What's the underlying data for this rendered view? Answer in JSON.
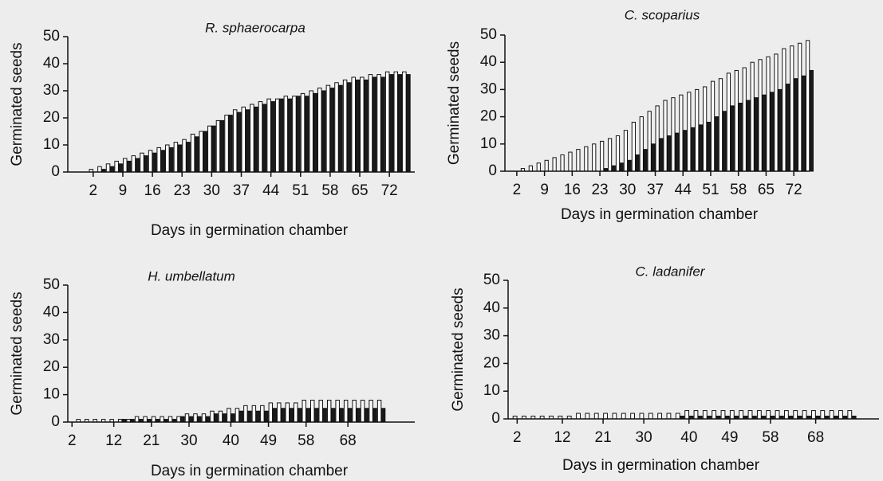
{
  "chart_data": [
    {
      "type": "bar",
      "title": "R. sphaerocarpa",
      "xlabel": "Days in germination chamber",
      "ylabel": "Germinated seeds",
      "x": [
        2,
        4,
        6,
        8,
        10,
        12,
        14,
        16,
        18,
        20,
        22,
        24,
        26,
        28,
        30,
        32,
        34,
        36,
        38,
        40,
        42,
        44,
        46,
        48,
        50,
        52,
        54,
        56,
        58,
        60,
        62,
        64,
        66,
        68,
        70,
        72,
        74,
        76
      ],
      "series": [
        {
          "color": "#ffffff",
          "values": [
            1,
            2,
            3,
            4,
            5,
            6,
            7,
            8,
            9,
            10,
            11,
            12,
            14,
            15,
            17,
            19,
            21,
            23,
            24,
            25,
            26,
            27,
            27,
            28,
            28,
            29,
            30,
            31,
            32,
            33,
            34,
            35,
            35,
            36,
            36,
            37,
            37,
            37
          ]
        },
        {
          "color": "#1a1a1a",
          "values": [
            0,
            1,
            2,
            3,
            4,
            5,
            6,
            7,
            8,
            9,
            10,
            11,
            13,
            15,
            17,
            19,
            21,
            22,
            23,
            24,
            25,
            26,
            27,
            27,
            28,
            28,
            29,
            30,
            31,
            32,
            33,
            34,
            34,
            35,
            35,
            36,
            36,
            36
          ]
        }
      ],
      "xlim": [
        -4,
        78
      ],
      "xticks": [
        2,
        9,
        16,
        23,
        30,
        37,
        44,
        51,
        58,
        65,
        72
      ],
      "ylim": [
        0,
        50
      ],
      "yticks": [
        0,
        10,
        20,
        30,
        40,
        50
      ]
    },
    {
      "type": "bar",
      "title": "C. scoparius",
      "xlabel": "Days in germination chamber",
      "ylabel": "Germinated seeds",
      "x": [
        2,
        4,
        6,
        8,
        10,
        12,
        14,
        16,
        18,
        20,
        22,
        24,
        26,
        28,
        30,
        32,
        34,
        36,
        38,
        40,
        42,
        44,
        46,
        48,
        50,
        52,
        54,
        56,
        58,
        60,
        62,
        64,
        66,
        68,
        70,
        72,
        74,
        76
      ],
      "series": [
        {
          "color": "#ffffff",
          "values": [
            0,
            1,
            2,
            3,
            4,
            5,
            6,
            7,
            8,
            9,
            10,
            11,
            12,
            13,
            15,
            18,
            20,
            22,
            24,
            26,
            27,
            28,
            29,
            30,
            31,
            33,
            34,
            36,
            37,
            38,
            40,
            41,
            42,
            43,
            45,
            46,
            47,
            48
          ]
        },
        {
          "color": "#1a1a1a",
          "values": [
            0,
            0,
            0,
            0,
            0,
            0,
            0,
            0,
            0,
            0,
            0,
            1,
            2,
            3,
            4,
            6,
            8,
            10,
            12,
            13,
            14,
            15,
            16,
            17,
            18,
            20,
            22,
            24,
            25,
            26,
            27,
            28,
            29,
            30,
            32,
            34,
            35,
            37
          ]
        }
      ],
      "xlim": [
        -1,
        76
      ],
      "xticks": [
        2,
        9,
        16,
        23,
        30,
        37,
        44,
        51,
        58,
        65,
        72
      ],
      "ylim": [
        0,
        50
      ],
      "yticks": [
        0,
        10,
        20,
        30,
        40,
        50
      ]
    },
    {
      "type": "bar",
      "title": "H. umbellatum",
      "xlabel": "Days in germination chamber",
      "ylabel": "Germinated seeds",
      "x": [
        2,
        4,
        6,
        8,
        10,
        12,
        14,
        16,
        18,
        20,
        22,
        24,
        26,
        28,
        30,
        32,
        34,
        36,
        38,
        40,
        42,
        44,
        46,
        48,
        50,
        52,
        54,
        56,
        58,
        60,
        62,
        64,
        66,
        68,
        70,
        72,
        74,
        76
      ],
      "series": [
        {
          "color": "#ffffff",
          "values": [
            0,
            1,
            1,
            1,
            1,
            1,
            1,
            1,
            2,
            2,
            2,
            2,
            2,
            2,
            3,
            3,
            3,
            4,
            4,
            5,
            5,
            6,
            6,
            6,
            7,
            7,
            7,
            7,
            8,
            8,
            8,
            8,
            8,
            8,
            8,
            8,
            8,
            8
          ]
        },
        {
          "color": "#1a1a1a",
          "values": [
            0,
            0,
            0,
            0,
            0,
            0,
            1,
            1,
            1,
            1,
            1,
            1,
            1,
            2,
            2,
            2,
            2,
            3,
            3,
            3,
            4,
            4,
            4,
            4,
            5,
            5,
            5,
            5,
            5,
            5,
            5,
            5,
            5,
            5,
            5,
            5,
            5,
            5
          ]
        }
      ],
      "xlim": [
        1,
        84
      ],
      "xticks": [
        2,
        12,
        21,
        30,
        40,
        49,
        58,
        68
      ],
      "ylim": [
        0,
        50
      ],
      "yticks": [
        0,
        10,
        20,
        30,
        40,
        50
      ]
    },
    {
      "type": "bar",
      "title": "C. ladanifer",
      "xlabel": "Days in germination chamber",
      "ylabel": "Germinated seeds",
      "x": [
        2,
        4,
        6,
        8,
        10,
        12,
        14,
        16,
        18,
        20,
        22,
        24,
        26,
        28,
        30,
        32,
        34,
        36,
        38,
        40,
        42,
        44,
        46,
        48,
        50,
        52,
        54,
        56,
        58,
        60,
        62,
        64,
        66,
        68,
        70,
        72,
        74,
        76
      ],
      "series": [
        {
          "color": "#ffffff",
          "values": [
            1,
            1,
            1,
            1,
            1,
            1,
            1,
            2,
            2,
            2,
            2,
            2,
            2,
            2,
            2,
            2,
            2,
            2,
            2,
            3,
            3,
            3,
            3,
            3,
            3,
            3,
            3,
            3,
            3,
            3,
            3,
            3,
            3,
            3,
            3,
            3,
            3,
            3
          ]
        },
        {
          "color": "#1a1a1a",
          "values": [
            0,
            0,
            0,
            0,
            0,
            0,
            0,
            0,
            0,
            0,
            0,
            0,
            0,
            0,
            0,
            0,
            0,
            0,
            1,
            1,
            1,
            1,
            1,
            1,
            1,
            1,
            1,
            1,
            1,
            1,
            1,
            1,
            1,
            1,
            1,
            1,
            1,
            1
          ]
        }
      ],
      "xlim": [
        0,
        82
      ],
      "xticks": [
        2,
        12,
        21,
        30,
        40,
        49,
        58,
        68
      ],
      "ylim": [
        0,
        50
      ],
      "yticks": [
        0,
        10,
        20,
        30,
        40,
        50
      ]
    }
  ]
}
